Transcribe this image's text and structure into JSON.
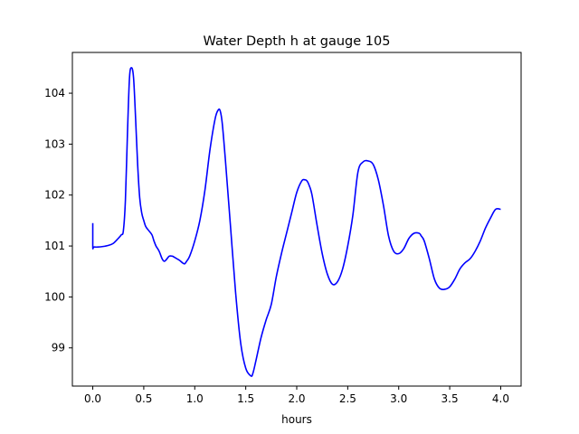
{
  "chart_data": {
    "type": "line",
    "title": "Water Depth h at gauge 105",
    "xlabel": "hours",
    "ylabel": "",
    "xlim": [
      -0.2,
      4.2
    ],
    "ylim": [
      98.25,
      104.8
    ],
    "xticks": [
      0.0,
      0.5,
      1.0,
      1.5,
      2.0,
      2.5,
      3.0,
      3.5,
      4.0
    ],
    "xtick_labels": [
      "0.0",
      "0.5",
      "1.0",
      "1.5",
      "2.0",
      "2.5",
      "3.0",
      "3.5",
      "4.0"
    ],
    "yticks": [
      99,
      100,
      101,
      102,
      103,
      104
    ],
    "ytick_labels": [
      "99",
      "100",
      "101",
      "102",
      "103",
      "104"
    ],
    "grid": false,
    "legend": "none",
    "series": [
      {
        "color": "#0000ff",
        "x": [
          0.0,
          0.0,
          0.01,
          0.05,
          0.1,
          0.15,
          0.2,
          0.25,
          0.28,
          0.3,
          0.32,
          0.34,
          0.36,
          0.38,
          0.4,
          0.42,
          0.44,
          0.46,
          0.48,
          0.5,
          0.52,
          0.55,
          0.58,
          0.6,
          0.62,
          0.65,
          0.68,
          0.7,
          0.72,
          0.75,
          0.78,
          0.8,
          0.85,
          0.88,
          0.9,
          0.92,
          0.95,
          1.0,
          1.05,
          1.1,
          1.15,
          1.2,
          1.23,
          1.25,
          1.27,
          1.3,
          1.35,
          1.4,
          1.45,
          1.5,
          1.55,
          1.57,
          1.6,
          1.65,
          1.7,
          1.75,
          1.8,
          1.85,
          1.9,
          1.95,
          2.0,
          2.05,
          2.08,
          2.1,
          2.12,
          2.15,
          2.2,
          2.25,
          2.3,
          2.35,
          2.4,
          2.45,
          2.5,
          2.55,
          2.6,
          2.65,
          2.7,
          2.75,
          2.8,
          2.85,
          2.9,
          2.95,
          3.0,
          3.05,
          3.1,
          3.15,
          3.2,
          3.22,
          3.25,
          3.3,
          3.35,
          3.4,
          3.45,
          3.5,
          3.55,
          3.6,
          3.65,
          3.7,
          3.75,
          3.8,
          3.85,
          3.9,
          3.95,
          4.0
        ],
        "y": [
          101.45,
          100.98,
          100.98,
          100.98,
          100.99,
          101.01,
          101.05,
          101.15,
          101.22,
          101.3,
          101.9,
          103.2,
          104.3,
          104.5,
          104.3,
          103.5,
          102.6,
          101.95,
          101.65,
          101.5,
          101.38,
          101.3,
          101.22,
          101.1,
          101.0,
          100.9,
          100.75,
          100.7,
          100.73,
          100.8,
          100.8,
          100.78,
          100.72,
          100.67,
          100.65,
          100.7,
          100.8,
          101.1,
          101.5,
          102.1,
          102.9,
          103.5,
          103.67,
          103.65,
          103.4,
          102.7,
          101.4,
          100.1,
          99.1,
          98.6,
          98.45,
          98.5,
          98.75,
          99.2,
          99.55,
          99.85,
          100.4,
          100.85,
          101.25,
          101.65,
          102.05,
          102.28,
          102.3,
          102.28,
          102.2,
          102.0,
          101.4,
          100.85,
          100.45,
          100.25,
          100.3,
          100.55,
          101.0,
          101.6,
          102.45,
          102.65,
          102.67,
          102.6,
          102.3,
          101.8,
          101.2,
          100.9,
          100.85,
          100.95,
          101.15,
          101.25,
          101.25,
          101.2,
          101.1,
          100.75,
          100.35,
          100.17,
          100.15,
          100.2,
          100.35,
          100.55,
          100.67,
          100.75,
          100.9,
          101.1,
          101.35,
          101.55,
          101.72,
          101.72
        ]
      }
    ]
  }
}
